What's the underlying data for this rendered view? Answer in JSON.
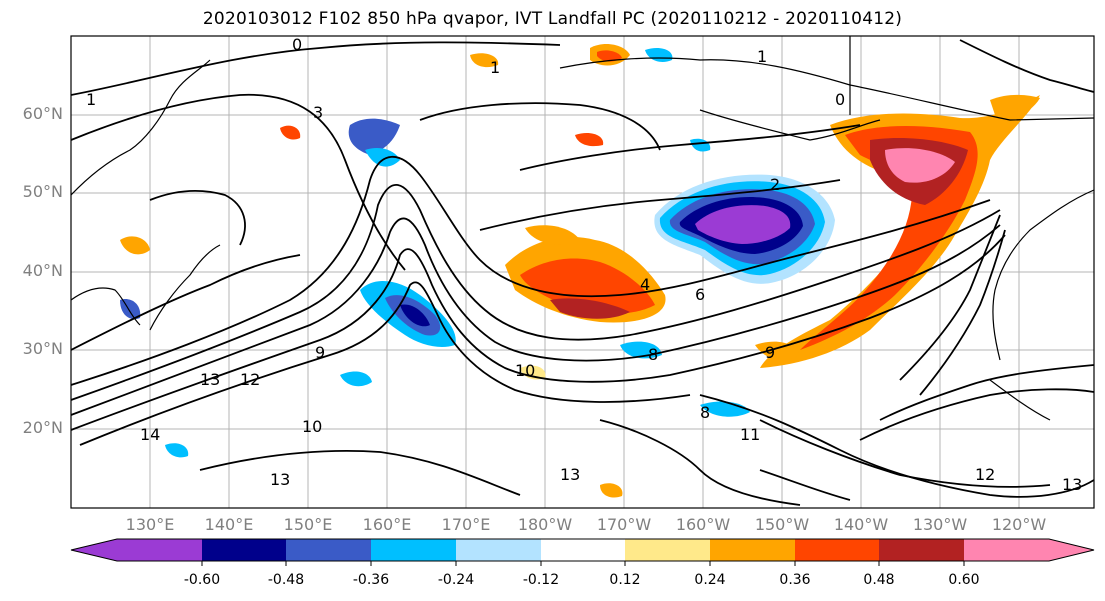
{
  "title": "2020103012 F102 850 hPa qvapor, IVT Landfall PC (2020110212 - 2020110412)",
  "lat_labels": [
    "60°N",
    "50°N",
    "40°N",
    "30°N",
    "20°N"
  ],
  "lon_labels": [
    "130°E",
    "140°E",
    "150°E",
    "160°E",
    "170°E",
    "180°W",
    "170°W",
    "160°W",
    "150°W",
    "140°W",
    "130°W",
    "120°W"
  ],
  "colorbar": {
    "tick_labels": [
      "-0.60",
      "-0.48",
      "-0.36",
      "-0.24",
      "-0.12",
      "0.12",
      "0.24",
      "0.36",
      "0.48",
      "0.60"
    ],
    "colors": [
      "#9b3bd4",
      "#00008b",
      "#3a5bc7",
      "#00bfff",
      "#b3e3ff",
      "#ffffff",
      "#ffe98a",
      "#ffa500",
      "#ff4500",
      "#b22222",
      "#ff85b0"
    ]
  },
  "contour_labels": [
    "0",
    "1",
    "1",
    "0",
    "1",
    "2",
    "3",
    "4",
    "6",
    "8",
    "8",
    "9",
    "9",
    "10",
    "10",
    "12",
    "13",
    "13",
    "14",
    "13",
    "12",
    "13",
    "11"
  ],
  "colors": {
    "anomaly_purple": "#9b3bd4",
    "anomaly_navy": "#00008b",
    "anomaly_blue": "#3a5bc7",
    "anomaly_cyan": "#00bfff",
    "anomaly_lightblue": "#b3e3ff",
    "anomaly_yellow": "#ffe98a",
    "anomaly_orange": "#ffa500",
    "anomaly_redorange": "#ff4500",
    "anomaly_darkred": "#b22222",
    "anomaly_pink": "#ff85b0"
  }
}
